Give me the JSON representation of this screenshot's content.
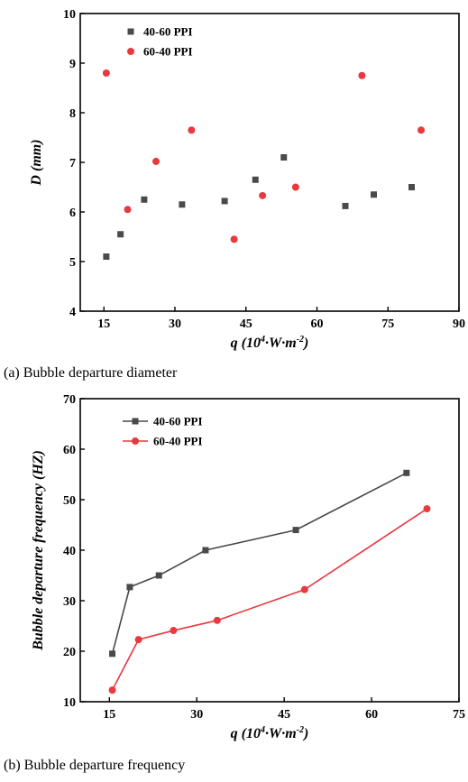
{
  "chart_data": [
    {
      "type": "scatter",
      "xlim": [
        10,
        90
      ],
      "ylim": [
        4,
        10
      ],
      "xticks": [
        15,
        30,
        45,
        60,
        75,
        90
      ],
      "yticks": [
        4,
        5,
        6,
        7,
        8,
        9,
        10
      ],
      "xlabel": {
        "italic": "q",
        "rest": "(10",
        "sup1": "4",
        "mid": "·W·m",
        "sup2": "-2",
        "end": ")"
      },
      "ylabel": "D (mm)",
      "legend_position": "top-left",
      "caption": "(a) Bubble departure diameter",
      "series": [
        {
          "name": "40-60 PPI",
          "color": "#4a4a4a",
          "marker": "square",
          "x": [
            15.5,
            18.5,
            23.5,
            31.5,
            40.5,
            47,
            53,
            66,
            72,
            80
          ],
          "y": [
            5.1,
            5.55,
            6.25,
            6.15,
            6.22,
            6.65,
            7.1,
            6.12,
            6.35,
            6.5
          ]
        },
        {
          "name": "60-40 PPI",
          "color": "#e8393f",
          "marker": "circle",
          "x": [
            15.5,
            20,
            26,
            33.5,
            42.5,
            48.5,
            55.5,
            69.5,
            82
          ],
          "y": [
            8.8,
            6.05,
            7.02,
            7.65,
            5.45,
            6.33,
            6.5,
            8.75,
            7.65
          ]
        }
      ]
    },
    {
      "type": "line",
      "xlim": [
        10,
        75
      ],
      "ylim": [
        10,
        70
      ],
      "xticks": [
        15,
        30,
        45,
        60,
        75
      ],
      "yticks": [
        10,
        20,
        30,
        40,
        50,
        60,
        70
      ],
      "xlabel": {
        "italic": "q",
        "rest": "(10",
        "sup1": "4",
        "mid": "·W·m",
        "sup2": "-2",
        "end": ")"
      },
      "ylabel": "Bubble departure frequency (HZ)",
      "legend_position": "top-left",
      "caption": "(b) Bubble departure frequency",
      "series": [
        {
          "name": "40-60 PPI",
          "color": "#4a4a4a",
          "marker": "square",
          "x": [
            15.5,
            18.5,
            23.5,
            31.5,
            47,
            66
          ],
          "y": [
            19.5,
            32.7,
            35,
            40,
            44,
            55.3
          ]
        },
        {
          "name": "60-40 PPI",
          "color": "#e8393f",
          "marker": "circle",
          "x": [
            15.5,
            20,
            26,
            33.5,
            48.5,
            69.5
          ],
          "y": [
            12.3,
            22.3,
            24.1,
            26.1,
            32.2,
            48.2
          ]
        }
      ]
    }
  ]
}
